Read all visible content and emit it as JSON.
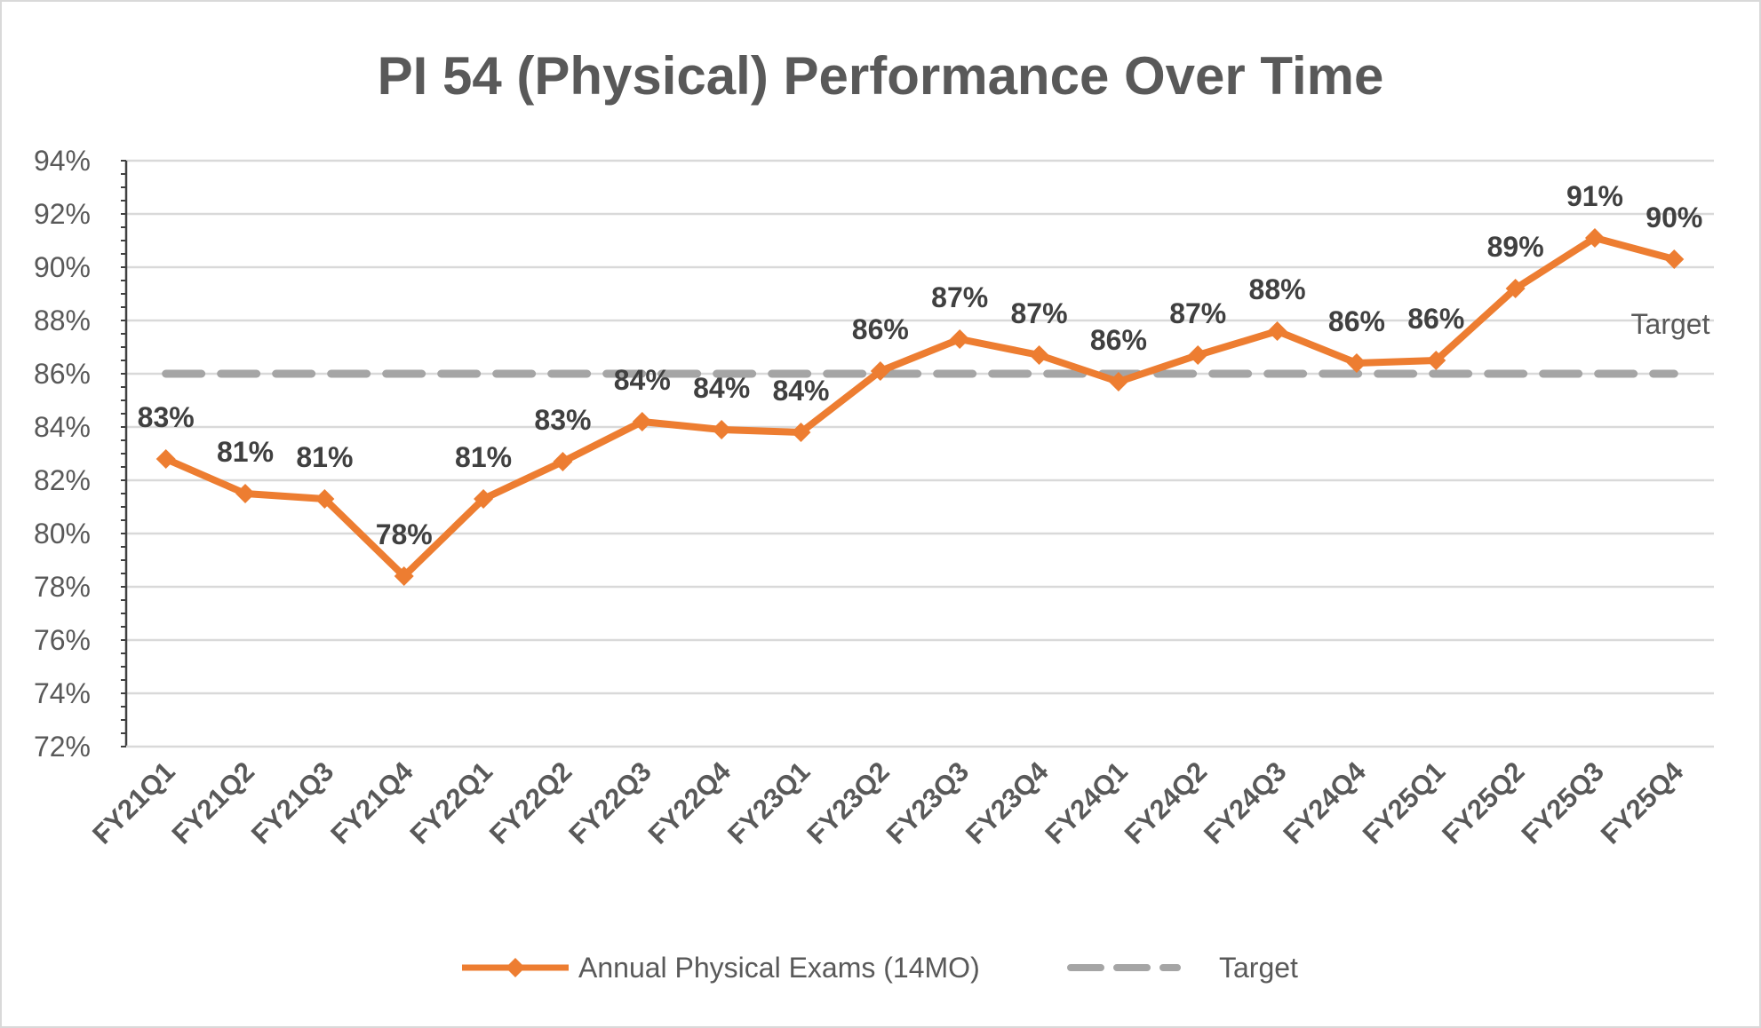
{
  "chart_data": {
    "type": "line",
    "title": "PI 54 (Physical) Performance Over Time",
    "xlabel": "",
    "ylabel": "",
    "ylim": [
      72,
      94
    ],
    "ytick_step": 2,
    "yticks": [
      "72%",
      "74%",
      "76%",
      "78%",
      "80%",
      "82%",
      "84%",
      "86%",
      "88%",
      "90%",
      "92%",
      "94%"
    ],
    "grid": true,
    "legend_position": "bottom",
    "categories": [
      "FY21Q1",
      "FY21Q2",
      "FY21Q3",
      "FY21Q4",
      "FY22Q1",
      "FY22Q2",
      "FY22Q3",
      "FY22Q4",
      "FY23Q1",
      "FY23Q2",
      "FY23Q3",
      "FY23Q4",
      "FY24Q1",
      "FY24Q2",
      "FY24Q3",
      "FY24Q4",
      "FY25Q1",
      "FY25Q2",
      "FY25Q3",
      "FY25Q4"
    ],
    "series": [
      {
        "name": "Annual Physical Exams (14MO)",
        "color": "#ed7d31",
        "marker": "diamond",
        "values": [
          82.8,
          81.5,
          81.3,
          78.4,
          81.3,
          82.7,
          84.2,
          83.9,
          83.8,
          86.1,
          87.3,
          86.7,
          85.7,
          86.7,
          87.6,
          86.4,
          86.5,
          89.2,
          91.1,
          90.3
        ],
        "data_labels": [
          "83%",
          "81%",
          "81%",
          "78%",
          "81%",
          "83%",
          "84%",
          "84%",
          "84%",
          "86%",
          "87%",
          "87%",
          "86%",
          "87%",
          "88%",
          "86%",
          "86%",
          "89%",
          "91%",
          "90%"
        ]
      },
      {
        "name": "Target",
        "color": "#a5a5a5",
        "style": "dashed",
        "values": [
          86,
          86,
          86,
          86,
          86,
          86,
          86,
          86,
          86,
          86,
          86,
          86,
          86,
          86,
          86,
          86,
          86,
          86,
          86,
          86
        ],
        "end_label": "Target"
      }
    ]
  }
}
